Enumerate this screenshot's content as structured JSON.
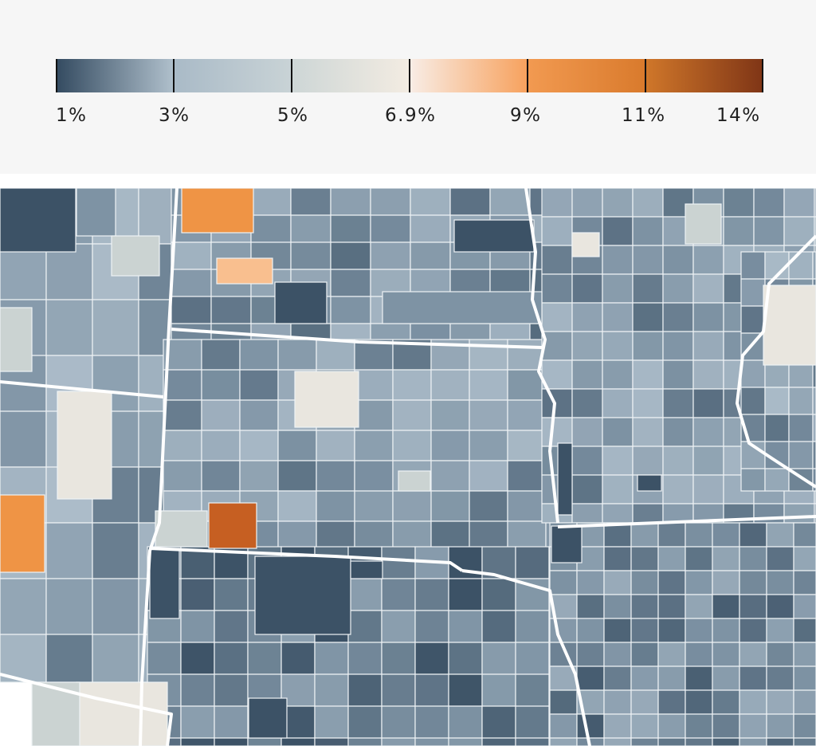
{
  "legend": {
    "labels": [
      "1%",
      "3%",
      "5%",
      "6.9%",
      "9%",
      "11%",
      "14%"
    ],
    "stops": [
      1,
      3,
      5,
      6.9,
      9,
      11,
      14
    ],
    "colors": [
      "#324a60",
      "#7d93a6",
      "#b6c5d0",
      "#d7ddd8",
      "#f3ebe2",
      "#f7a462",
      "#e0822e",
      "#8e3a14"
    ]
  },
  "map": {
    "dark_color": "#3c5266",
    "mid_color": "#7e93a4",
    "light_color": "#aebecb",
    "pale_color": "#cbd3d2",
    "cream_color": "#e9e6df",
    "orange_light": "#f9bf8f",
    "orange_mid": "#ef9445",
    "orange_dark": "#c65f22"
  }
}
